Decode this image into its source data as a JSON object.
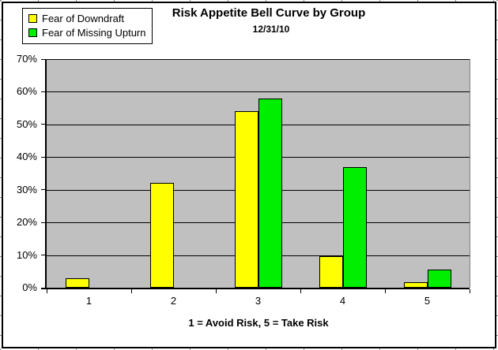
{
  "chart_data": {
    "type": "bar",
    "title": "Risk Appetite Bell Curve by Group",
    "subtitle": "12/31/10",
    "categories": [
      "1",
      "2",
      "3",
      "4",
      "5"
    ],
    "series": [
      {
        "name": "Fear of Downdraft",
        "color": "#FFFF00",
        "values": [
          3,
          32,
          54,
          9.7,
          1.7
        ]
      },
      {
        "name": "Fear of Missing Upturn",
        "color": "#00EE00",
        "values": [
          0,
          0,
          58,
          37,
          5.5
        ]
      }
    ],
    "xlabel": "1 = Avoid Risk, 5 = Take Risk",
    "ylabel": "",
    "ylim": [
      0,
      70
    ],
    "ytick_step": 10,
    "yticklabels": [
      "0%",
      "10%",
      "20%",
      "30%",
      "40%",
      "50%",
      "60%",
      "70%"
    ],
    "grid": true,
    "legend_position": "top-left",
    "plot_bg_color": "#C0C0C0",
    "bar_border_color": "#000000",
    "gridline_color": "#000000"
  }
}
